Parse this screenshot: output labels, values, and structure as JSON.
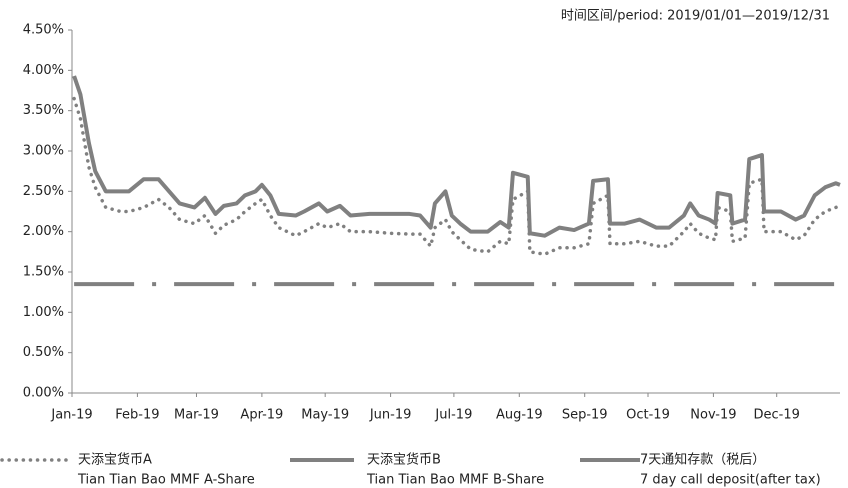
{
  "chart_data": {
    "type": "line",
    "title": "时间区间/period: 2019/01/01—2019/12/31",
    "x": [
      1,
      4,
      8,
      11,
      16,
      23,
      27,
      34,
      41,
      46,
      51,
      58,
      63,
      68,
      72,
      78,
      82,
      87,
      90,
      94,
      98,
      106,
      110,
      117,
      121,
      127,
      132,
      141,
      151,
      160,
      165,
      170,
      172,
      177,
      180,
      184,
      189,
      197,
      203,
      207,
      209,
      216,
      217,
      224,
      231,
      238,
      245,
      247,
      254,
      255,
      262,
      269,
      277,
      283,
      290,
      293,
      297,
      302,
      305,
      306,
      312,
      313,
      319,
      321,
      327,
      328,
      336,
      343,
      347,
      352,
      357,
      362,
      364
    ],
    "xlim": [
      0,
      364
    ],
    "xticks": [
      {
        "value": 0,
        "label": "Jan-19"
      },
      {
        "value": 31,
        "label": "Feb-19"
      },
      {
        "value": 59,
        "label": "Mar-19"
      },
      {
        "value": 90,
        "label": "Apr-19"
      },
      {
        "value": 120,
        "label": "May-19"
      },
      {
        "value": 151,
        "label": "Jun-19"
      },
      {
        "value": 181,
        "label": "Jul-19"
      },
      {
        "value": 212,
        "label": "Aug-19"
      },
      {
        "value": 243,
        "label": "Sep-19"
      },
      {
        "value": 273,
        "label": "Oct-19"
      },
      {
        "value": 304,
        "label": "Nov-19"
      },
      {
        "value": 334,
        "label": "Dec-19"
      }
    ],
    "ylim": [
      0,
      4.5
    ],
    "yticks": [
      {
        "value": 0,
        "label": "0.00%"
      },
      {
        "value": 0.5,
        "label": "0.50%"
      },
      {
        "value": 1,
        "label": "1.00%"
      },
      {
        "value": 1.5,
        "label": "1.50%"
      },
      {
        "value": 2,
        "label": "2.00%"
      },
      {
        "value": 2.5,
        "label": "2.50%"
      },
      {
        "value": 3,
        "label": "3.00%"
      },
      {
        "value": 3.5,
        "label": "3.50%"
      },
      {
        "value": 4,
        "label": "4.00%"
      },
      {
        "value": 4.5,
        "label": "4.50%"
      }
    ],
    "grid": false,
    "series": [
      {
        "name": "天添宝货币A",
        "name_en": "Tian Tian Bao MMF A-Share",
        "color": "#808080",
        "style": "dotted",
        "values": [
          3.65,
          3.4,
          2.8,
          2.55,
          2.3,
          2.25,
          2.25,
          2.3,
          2.4,
          2.3,
          2.15,
          2.1,
          2.2,
          1.98,
          2.08,
          2.15,
          2.25,
          2.35,
          2.4,
          2.2,
          2.05,
          1.95,
          2.0,
          2.1,
          2.05,
          2.1,
          2.0,
          2.0,
          1.98,
          1.97,
          1.97,
          1.82,
          2.05,
          2.15,
          2.0,
          1.9,
          1.78,
          1.75,
          1.88,
          1.85,
          2.4,
          2.5,
          1.75,
          1.72,
          1.8,
          1.8,
          1.85,
          2.35,
          2.45,
          1.85,
          1.85,
          1.88,
          1.82,
          1.82,
          2.0,
          2.1,
          1.98,
          1.92,
          1.9,
          2.3,
          2.25,
          1.88,
          1.92,
          2.6,
          2.65,
          2.0,
          2.0,
          1.9,
          1.95,
          2.15,
          2.25,
          2.3,
          2.32
        ]
      },
      {
        "name": "天添宝货币B",
        "name_en": "Tian Tian Bao MMF B-Share",
        "color": "#808080",
        "style": "solid",
        "values": [
          3.93,
          3.7,
          3.1,
          2.75,
          2.5,
          2.5,
          2.5,
          2.65,
          2.65,
          2.5,
          2.35,
          2.3,
          2.42,
          2.22,
          2.32,
          2.35,
          2.45,
          2.5,
          2.58,
          2.45,
          2.22,
          2.2,
          2.25,
          2.35,
          2.25,
          2.32,
          2.2,
          2.22,
          2.22,
          2.22,
          2.2,
          2.05,
          2.35,
          2.5,
          2.2,
          2.1,
          2.0,
          2.0,
          2.12,
          2.05,
          2.73,
          2.68,
          1.98,
          1.95,
          2.05,
          2.02,
          2.1,
          2.63,
          2.65,
          2.1,
          2.1,
          2.15,
          2.05,
          2.05,
          2.2,
          2.35,
          2.2,
          2.15,
          2.1,
          2.48,
          2.45,
          2.1,
          2.15,
          2.9,
          2.95,
          2.25,
          2.25,
          2.15,
          2.2,
          2.45,
          2.55,
          2.6,
          2.58
        ]
      },
      {
        "name": "7天通知存款（税后）",
        "name_en": "7 day call deposit(after tax)",
        "color": "#808080",
        "style": "dashdot",
        "values": [
          1.35,
          1.35,
          1.35,
          1.35,
          1.35,
          1.35,
          1.35,
          1.35,
          1.35,
          1.35,
          1.35,
          1.35,
          1.35,
          1.35,
          1.35,
          1.35,
          1.35,
          1.35,
          1.35,
          1.35,
          1.35,
          1.35,
          1.35,
          1.35,
          1.35,
          1.35,
          1.35,
          1.35,
          1.35,
          1.35,
          1.35,
          1.35,
          1.35,
          1.35,
          1.35,
          1.35,
          1.35,
          1.35,
          1.35,
          1.35,
          1.35,
          1.35,
          1.35,
          1.35,
          1.35,
          1.35,
          1.35,
          1.35,
          1.35,
          1.35,
          1.35,
          1.35,
          1.35,
          1.35,
          1.35,
          1.35,
          1.35,
          1.35,
          1.35,
          1.35,
          1.35,
          1.35,
          1.35,
          1.35,
          1.35,
          1.35,
          1.35,
          1.35,
          1.35,
          1.35,
          1.35,
          1.35,
          1.35
        ]
      }
    ]
  }
}
